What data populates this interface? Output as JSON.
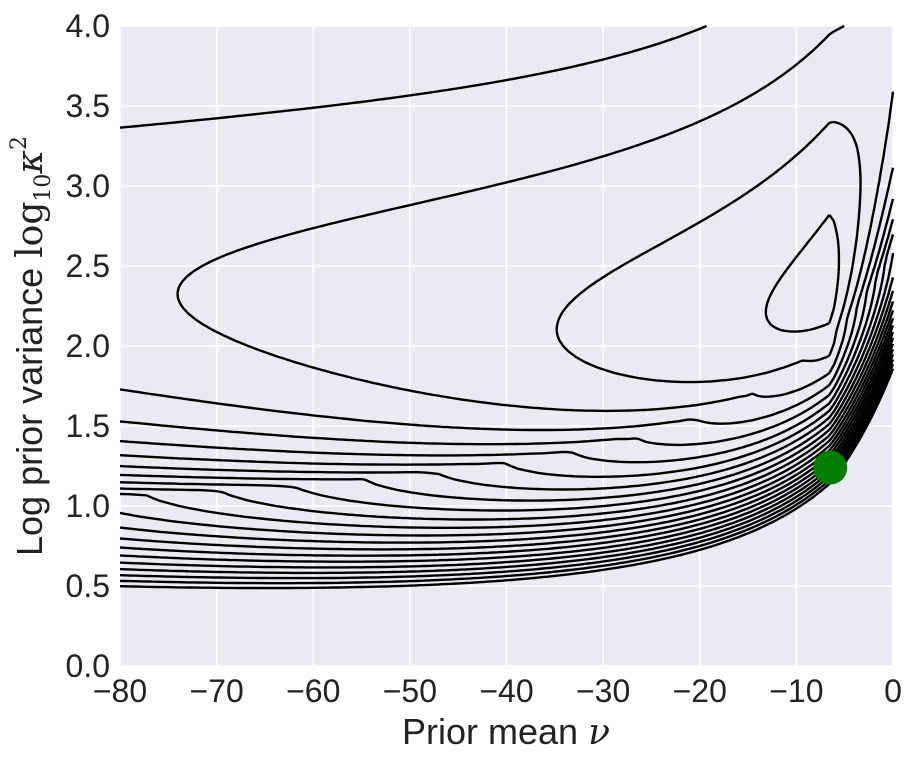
{
  "chart_data": {
    "type": "contour",
    "title": "",
    "xlabel": "Prior mean",
    "xlabel_symbol": "ν",
    "ylabel": "Log prior variance",
    "ylabel_func": "log",
    "ylabel_sub": "10",
    "ylabel_symbol": "κ",
    "ylabel_sup": "2",
    "xlim": [
      -80,
      0
    ],
    "ylim": [
      0.0,
      4.0
    ],
    "xticks": [
      -80,
      -70,
      -60,
      -50,
      -40,
      -30,
      -20,
      -10,
      0
    ],
    "xtick_labels": [
      "−80",
      "−70",
      "−60",
      "−50",
      "−40",
      "−30",
      "−20",
      "−10",
      "0"
    ],
    "yticks": [
      0.0,
      0.5,
      1.0,
      1.5,
      2.0,
      2.5,
      3.0,
      3.5,
      4.0
    ],
    "ytick_labels": [
      "0.0",
      "0.5",
      "1.0",
      "1.5",
      "2.0",
      "2.5",
      "3.0",
      "3.5",
      "4.0"
    ],
    "grid": true,
    "background_color": "#eaeaf2",
    "contour_color": "#000000",
    "contour_levels": 22,
    "optimum_point": {
      "x": -6.5,
      "y": 1.24,
      "color": "#007f00"
    }
  }
}
